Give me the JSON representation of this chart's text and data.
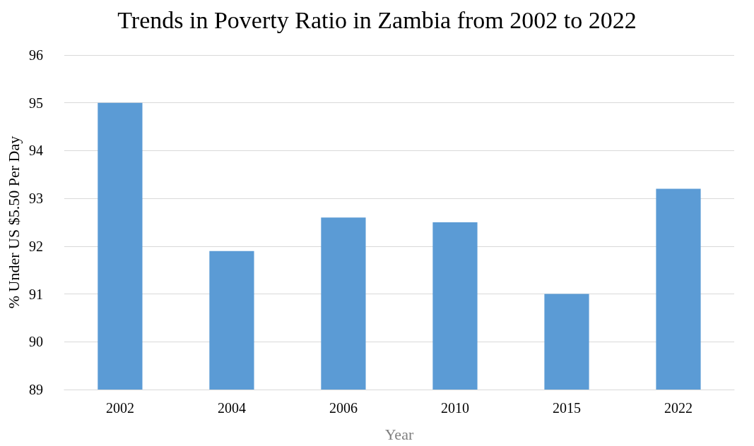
{
  "chart_data": {
    "type": "bar",
    "title": "Trends in Poverty Ratio in Zambia from 2002 to 2022",
    "xlabel": "Year",
    "ylabel": "% Under US $5.50 Per Day",
    "categories": [
      "2002",
      "2004",
      "2006",
      "2010",
      "2015",
      "2022"
    ],
    "values": [
      95,
      91.9,
      92.6,
      92.5,
      91.0,
      93.2
    ],
    "color": "#5b9bd5",
    "ylim": [
      89,
      96
    ],
    "yticks": [
      89,
      90,
      91,
      92,
      93,
      94,
      95,
      96
    ],
    "grid": "y"
  }
}
